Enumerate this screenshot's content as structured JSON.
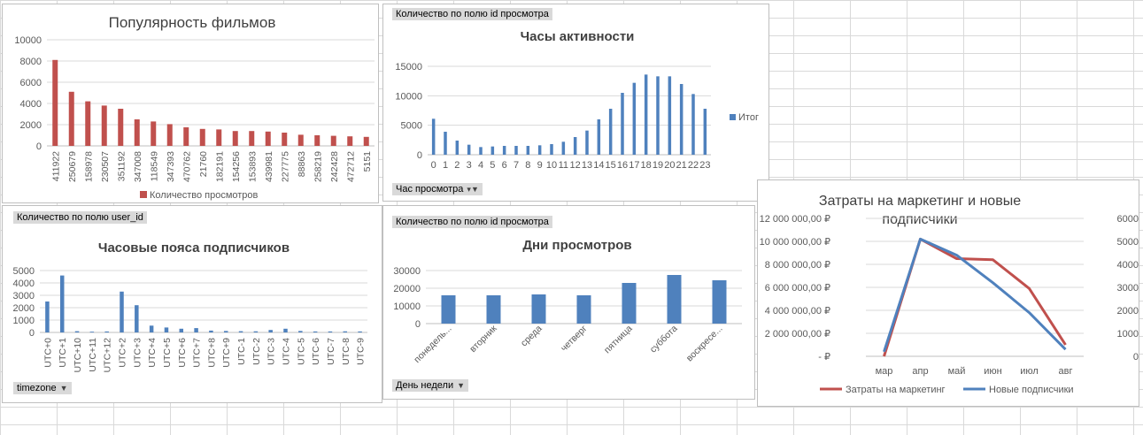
{
  "colors": {
    "red": "#c0504d",
    "blue": "#4f81bd",
    "axis_text": "#595959",
    "title_text": "#404040"
  },
  "charts": {
    "popularity": {
      "title": "Популярность фильмов",
      "legend": "Количество просмотров"
    },
    "hours": {
      "field_button": "Количество по полю id просмотра",
      "title": "Часы активности",
      "legend": "Итог",
      "filter_button": "Час просмотра"
    },
    "timezones": {
      "field_button": "Количество по полю user_id",
      "title": "Часовые пояса подписчиков",
      "filter_button": "timezone"
    },
    "days": {
      "field_button": "Количество по полю id просмотра",
      "title": "Дни просмотров",
      "filter_button": "День недели"
    },
    "marketing": {
      "title_line1": "Затраты на маркетинг и новые",
      "title_line2": "подписчики",
      "legend_left": "Затраты на маркетинг",
      "legend_right": "Новые подписчики"
    }
  },
  "chart_data": [
    {
      "type": "bar",
      "title": "Популярность фильмов",
      "categories": [
        "411922",
        "250679",
        "158978",
        "230507",
        "351192",
        "347008",
        "118549",
        "347393",
        "470762",
        "21760",
        "182191",
        "154256",
        "153893",
        "439981",
        "227775",
        "88863",
        "258219",
        "242428",
        "472712",
        "5151"
      ],
      "series": [
        {
          "name": "Количество просмотров",
          "values": [
            8100,
            5100,
            4200,
            3800,
            3500,
            2500,
            2300,
            2050,
            1750,
            1600,
            1550,
            1400,
            1400,
            1350,
            1250,
            1050,
            1000,
            950,
            900,
            850
          ]
        }
      ],
      "yticks": [
        "0",
        "2000",
        "4000",
        "6000",
        "8000",
        "10000"
      ],
      "ylim": [
        0,
        10000
      ]
    },
    {
      "type": "bar",
      "title": "Часы активности",
      "categories": [
        "0",
        "1",
        "2",
        "3",
        "4",
        "5",
        "6",
        "7",
        "8",
        "9",
        "10",
        "11",
        "12",
        "13",
        "14",
        "15",
        "16",
        "17",
        "18",
        "19",
        "20",
        "21",
        "22",
        "23"
      ],
      "series": [
        {
          "name": "Итог",
          "values": [
            6100,
            3900,
            2400,
            1700,
            1300,
            1400,
            1500,
            1500,
            1500,
            1600,
            1800,
            2200,
            3000,
            4100,
            6000,
            7800,
            10500,
            12200,
            13600,
            13300,
            13300,
            12000,
            10300,
            7800
          ]
        }
      ],
      "yticks": [
        "0",
        "5000",
        "10000",
        "15000"
      ],
      "ylim": [
        0,
        15000
      ]
    },
    {
      "type": "bar",
      "title": "Часовые пояса подписчиков",
      "categories": [
        "UTC+0",
        "UTC+1",
        "UTC+10",
        "UTC+11",
        "UTC+12",
        "UTC+2",
        "UTC+3",
        "UTC+4",
        "UTC+5",
        "UTC+6",
        "UTC+7",
        "UTC+8",
        "UTC+9",
        "UTC-1",
        "UTC-2",
        "UTC-3",
        "UTC-4",
        "UTC-5",
        "UTC-6",
        "UTC-7",
        "UTC-8",
        "UTC-9"
      ],
      "series": [
        {
          "values": [
            2500,
            4600,
            100,
            60,
            80,
            3300,
            2200,
            550,
            400,
            300,
            350,
            150,
            120,
            100,
            90,
            200,
            300,
            120,
            80,
            80,
            90,
            80
          ]
        }
      ],
      "yticks": [
        "0",
        "1000",
        "2000",
        "3000",
        "4000",
        "5000"
      ],
      "ylim": [
        0,
        5000
      ]
    },
    {
      "type": "bar",
      "title": "Дни просмотров",
      "categories": [
        "понедель...",
        "вторник",
        "среда",
        "четверг",
        "пятница",
        "суббота",
        "воскресе..."
      ],
      "series": [
        {
          "values": [
            16000,
            16000,
            16500,
            16000,
            23000,
            27500,
            24500
          ]
        }
      ],
      "yticks": [
        "0",
        "10000",
        "20000",
        "30000"
      ],
      "ylim": [
        0,
        30000
      ]
    },
    {
      "type": "line",
      "title": "Затраты на маркетинг и новые подписчики",
      "categories": [
        "мар",
        "апр",
        "май",
        "июн",
        "июл",
        "авг"
      ],
      "series": [
        {
          "name": "Затраты на маркетинг",
          "axis": "left",
          "color": "#c0504d",
          "values": [
            0,
            10200000,
            8500000,
            8400000,
            5900000,
            1000000
          ]
        },
        {
          "name": "Новые подписчики",
          "axis": "right",
          "color": "#4f81bd",
          "values": [
            200,
            5100,
            4400,
            3200,
            1900,
            300
          ]
        }
      ],
      "yticks_left": [
        "-   ₽",
        "2 000 000,00 ₽",
        "4 000 000,00 ₽",
        "6 000 000,00 ₽",
        "8 000 000,00 ₽",
        "10 000 000,00 ₽",
        "12 000 000,00 ₽"
      ],
      "ylim_left": [
        0,
        12000000
      ],
      "yticks_right": [
        "0",
        "1000",
        "2000",
        "3000",
        "4000",
        "5000",
        "6000"
      ],
      "ylim_right": [
        0,
        6000
      ]
    }
  ]
}
